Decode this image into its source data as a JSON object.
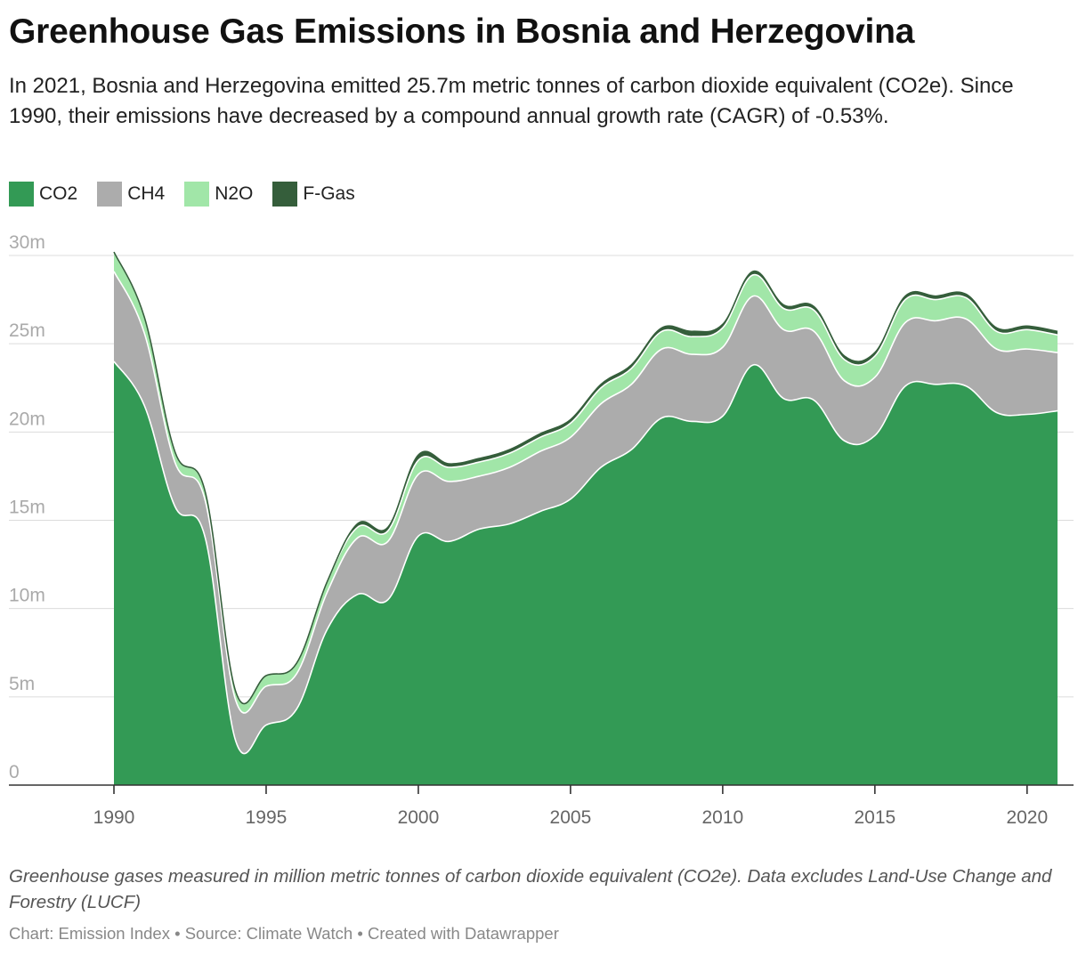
{
  "header": {
    "title": "Greenhouse Gas Emissions in Bosnia and Herzegovina",
    "subtitle": "In 2021, Bosnia and Herzegovina emitted 25.7m metric tonnes of carbon dioxide equivalent (CO2e). Since 1990, their emissions have decreased by a compound annual growth rate (CAGR) of -0.53%."
  },
  "legend": [
    {
      "label": "CO2",
      "color": "#339a55"
    },
    {
      "label": "CH4",
      "color": "#acacac"
    },
    {
      "label": "N2O",
      "color": "#a1e6a8"
    },
    {
      "label": "F-Gas",
      "color": "#355e3b"
    }
  ],
  "chart_data": {
    "type": "area",
    "stacked": true,
    "x": [
      1990,
      1991,
      1992,
      1993,
      1994,
      1995,
      1996,
      1997,
      1998,
      1999,
      2000,
      2001,
      2002,
      2003,
      2004,
      2005,
      2006,
      2007,
      2008,
      2009,
      2010,
      2011,
      2012,
      2013,
      2014,
      2015,
      2016,
      2017,
      2018,
      2019,
      2020,
      2021
    ],
    "series": [
      {
        "name": "CO2",
        "color": "#339a55",
        "values": [
          24.0,
          21.5,
          15.8,
          14.0,
          2.5,
          3.4,
          4.3,
          8.8,
          10.8,
          10.5,
          14.1,
          13.8,
          14.5,
          14.8,
          15.5,
          16.2,
          18.0,
          19.0,
          20.8,
          20.6,
          20.9,
          23.8,
          21.9,
          21.8,
          19.5,
          19.8,
          22.6,
          22.7,
          22.6,
          21.1,
          21.0,
          21.2
        ],
        "labels": [
          "24.0",
          "21.5",
          "15.8",
          "14.0",
          "2.5",
          "3.4",
          "4.3",
          "8.8",
          "10.8",
          "10.5",
          "14.1",
          "13.8",
          "14.5",
          "14.8",
          "15.5",
          "16.2",
          "18.0",
          "19.0",
          "20.8",
          "20.6",
          "20.9",
          "23.8",
          "21.9",
          "21.8",
          "19.5",
          "19.8",
          "22.6",
          "22.7",
          "22.6",
          "21.1",
          "21.0",
          "21.2"
        ]
      },
      {
        "name": "CH4",
        "color": "#acacac",
        "values": [
          5.1,
          4.1,
          2.5,
          2.1,
          2.3,
          2.2,
          2.0,
          2.1,
          3.2,
          3.3,
          3.5,
          3.4,
          3.0,
          3.2,
          3.4,
          3.5,
          3.6,
          3.7,
          3.9,
          3.8,
          3.9,
          3.9,
          3.9,
          3.9,
          3.4,
          3.3,
          3.6,
          3.6,
          3.8,
          3.6,
          3.7,
          3.3
        ],
        "labels": [
          "5.1",
          "4.1",
          "2.5",
          "2.1",
          "2.3",
          "2.2",
          "2.0",
          "2.1",
          "3.2",
          "3.3",
          "3.5",
          "3.4",
          "3.0",
          "3.2",
          "3.4",
          "3.5",
          "3.6",
          "3.7",
          "3.9",
          "3.8",
          "3.9",
          "3.9",
          "3.9",
          "3.9",
          "3.4",
          "3.3",
          "3.6",
          "3.6",
          "3.8",
          "3.6",
          "3.7",
          "3.3"
        ]
      },
      {
        "name": "N2O",
        "color": "#a1e6a8",
        "values": [
          1.1,
          0.9,
          0.6,
          0.5,
          0.5,
          0.6,
          0.6,
          0.6,
          0.6,
          0.6,
          0.8,
          0.8,
          0.8,
          0.8,
          0.8,
          0.8,
          0.9,
          0.9,
          1.0,
          1.0,
          1.1,
          1.2,
          1.2,
          1.2,
          1.2,
          1.2,
          1.3,
          1.2,
          1.2,
          1.0,
          1.1,
          1.0
        ],
        "labels": [
          "1.1",
          "0.9",
          "0.6",
          "0.5",
          "0.5",
          "0.6",
          "0.6",
          "0.6",
          "0.6",
          "0.6",
          "0.8",
          "0.8",
          "0.8",
          "0.8",
          "0.8",
          "0.8",
          "0.9",
          "0.9",
          "1.0",
          "1.0",
          "1.1",
          "1.2",
          "1.2",
          "1.2",
          "1.2",
          "1.2",
          "1.3",
          "1.2",
          "1.2",
          "1.0",
          "1.1",
          "1.0"
        ]
      },
      {
        "name": "F-Gas",
        "color": "#355e3b",
        "values": [
          0,
          0,
          0,
          0,
          0,
          0,
          0,
          0,
          0.2,
          0.2,
          0.3,
          0.2,
          0.2,
          0.2,
          0.2,
          0.2,
          0.2,
          0.2,
          0.2,
          0.3,
          0.2,
          0.2,
          0.2,
          0.2,
          0.2,
          0.2,
          0.2,
          0.2,
          0.2,
          0.2,
          0.2,
          0.2
        ],
        "labels": [
          "0",
          "0",
          "0",
          "0",
          "0",
          "0",
          "0",
          "0",
          "0.2",
          "0.2",
          "0.3",
          "0.2",
          "0.2",
          "0.2",
          "0.2",
          "0.2",
          "0.2",
          "0.2",
          "0.2",
          "0.3",
          "0.2",
          "0.2",
          "0.2",
          "0.2",
          "0.2",
          "0.2",
          "0.2",
          "0.2",
          "0.2",
          "0.2",
          "0.2",
          "0.2"
        ]
      }
    ],
    "ylim": [
      0,
      30
    ],
    "xlim": [
      1987.5,
      1990.0
    ],
    "y_ticks": [
      {
        "value": 0,
        "label": "0"
      },
      {
        "value": 5,
        "label": "5m"
      },
      {
        "value": 10,
        "label": "10m"
      },
      {
        "value": 15,
        "label": "15m"
      },
      {
        "value": 20,
        "label": "20m"
      },
      {
        "value": 25,
        "label": "25m"
      },
      {
        "value": 30,
        "label": "30m"
      }
    ],
    "x_ticks": [
      {
        "value": 1990,
        "label": "1990"
      },
      {
        "value": 1995,
        "label": "1995"
      },
      {
        "value": 2000,
        "label": "2000"
      },
      {
        "value": 2005,
        "label": "2005"
      },
      {
        "value": 2010,
        "label": "2010"
      },
      {
        "value": 2015,
        "label": "2015"
      },
      {
        "value": 2020,
        "label": "2020"
      }
    ],
    "grid": true,
    "legend_position": "top-left"
  },
  "notes": "Greenhouse gases measured in million metric tonnes of carbon dioxide equivalent (CO2e). Data excludes Land-Use Change and Forestry (LUCF)",
  "footer": "Chart: Emission Index • Source: Climate Watch • Created with Datawrapper"
}
